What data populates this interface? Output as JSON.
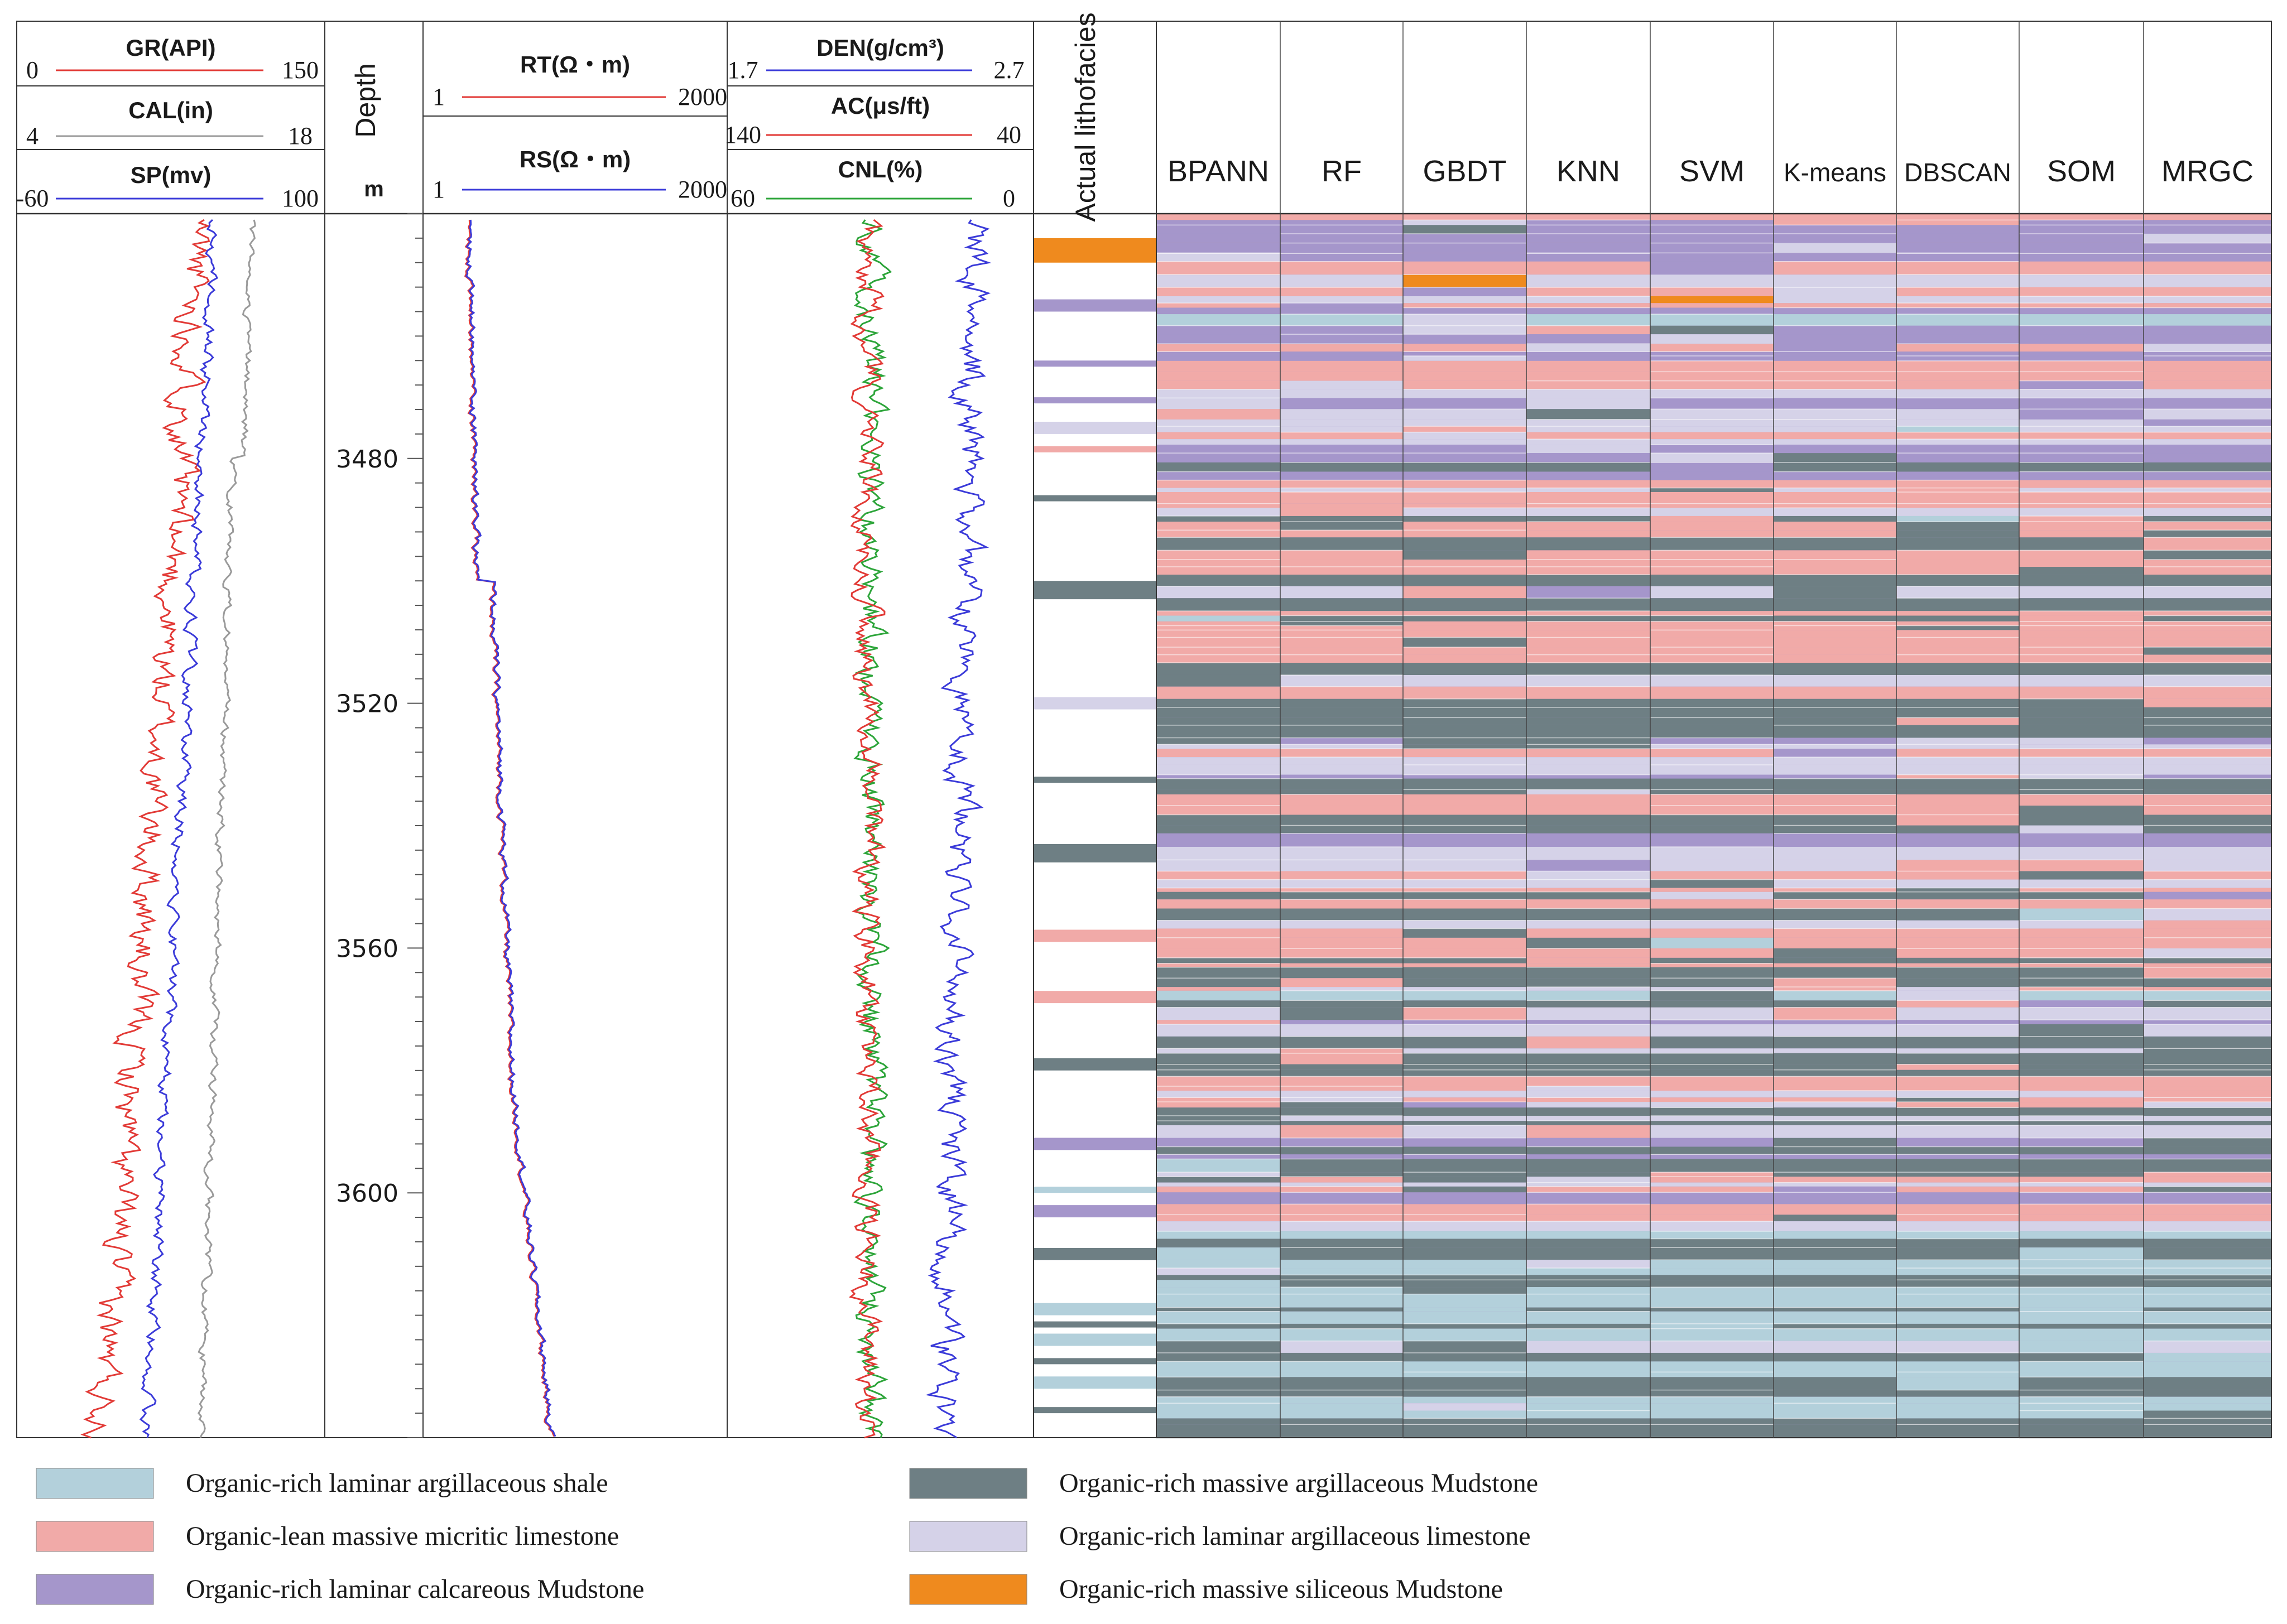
{
  "chart_data": {
    "type": "well-log lithofacies panel",
    "depth": {
      "label": "Depth",
      "unit": "m",
      "min": 3440,
      "max": 3640,
      "ticks": [
        3480,
        3520,
        3560,
        3600
      ]
    },
    "track1": {
      "curves": [
        {
          "name": "GR(API)",
          "min": "0",
          "max": "150",
          "color": "#e23a36"
        },
        {
          "name": "CAL(in)",
          "min": "4",
          "max": "18",
          "color": "#9a9a9a"
        },
        {
          "name": "SP(mv)",
          "min": "-60",
          "max": "100",
          "color": "#3b3bd9"
        }
      ]
    },
    "track2": {
      "curves": [
        {
          "name": "RT(Ω・m)",
          "min": "1",
          "max": "2000",
          "color": "#e23a36"
        },
        {
          "name": "RS(Ω・m)",
          "min": "1",
          "max": "2000",
          "color": "#3b3bd9"
        }
      ]
    },
    "track3": {
      "curves": [
        {
          "name": "DEN(g/cm³)",
          "min": "1.7",
          "max": "2.7",
          "color": "#3b3bd9"
        },
        {
          "name": "AC(μs/ft)",
          "min": "140",
          "max": "40",
          "color": "#e23a36"
        },
        {
          "name": "CNL(%)",
          "min": "60",
          "max": "0",
          "color": "#2da53a"
        }
      ]
    },
    "actual_label": "Actual lithofacies",
    "methods": [
      "BPANN",
      "RF",
      "GBDT",
      "KNN",
      "SVM",
      "K-means",
      "DBSCAN",
      "SOM",
      "MRGC"
    ],
    "classes": [
      {
        "name": "Organic-rich laminar argillaceous shale",
        "color": "#b3d0db"
      },
      {
        "name": "Organic-rich massive argillaceous Mudstone",
        "color": "#6e7f84"
      },
      {
        "name": "Organic-lean massive micritic limestone",
        "color": "#f1aaa8"
      },
      {
        "name": "Organic-rich laminar argillaceous limestone",
        "color": "#d5d2e8"
      },
      {
        "name": "Organic-rich laminar calcareous Mudstone",
        "color": "#a596cb"
      },
      {
        "name": "Organic-rich massive siliceous Mudstone",
        "color": "#ef8a1e"
      }
    ],
    "actual_bands": [
      {
        "from": 3444,
        "to": 3448,
        "class": 5
      },
      {
        "from": 3454,
        "to": 3456,
        "class": 4
      },
      {
        "from": 3464,
        "to": 3465,
        "class": 4
      },
      {
        "from": 3470,
        "to": 3471,
        "class": 4
      },
      {
        "from": 3474,
        "to": 3476,
        "class": 3
      },
      {
        "from": 3478,
        "to": 3479,
        "class": 2
      },
      {
        "from": 3486,
        "to": 3487,
        "class": 1
      },
      {
        "from": 3500,
        "to": 3503,
        "class": 1
      },
      {
        "from": 3519,
        "to": 3521,
        "class": 3
      },
      {
        "from": 3532,
        "to": 3533,
        "class": 1
      },
      {
        "from": 3543,
        "to": 3546,
        "class": 1
      },
      {
        "from": 3557,
        "to": 3559,
        "class": 2
      },
      {
        "from": 3567,
        "to": 3569,
        "class": 2
      },
      {
        "from": 3578,
        "to": 3580,
        "class": 1
      },
      {
        "from": 3591,
        "to": 3593,
        "class": 4
      },
      {
        "from": 3599,
        "to": 3600,
        "class": 0
      },
      {
        "from": 3602,
        "to": 3604,
        "class": 4
      },
      {
        "from": 3609,
        "to": 3611,
        "class": 1
      },
      {
        "from": 3618,
        "to": 3620,
        "class": 0
      },
      {
        "from": 3621,
        "to": 3622,
        "class": 1
      },
      {
        "from": 3623,
        "to": 3625,
        "class": 0
      },
      {
        "from": 3627,
        "to": 3628,
        "class": 1
      },
      {
        "from": 3630,
        "to": 3632,
        "class": 0
      },
      {
        "from": 3635,
        "to": 3636,
        "class": 1
      }
    ]
  }
}
